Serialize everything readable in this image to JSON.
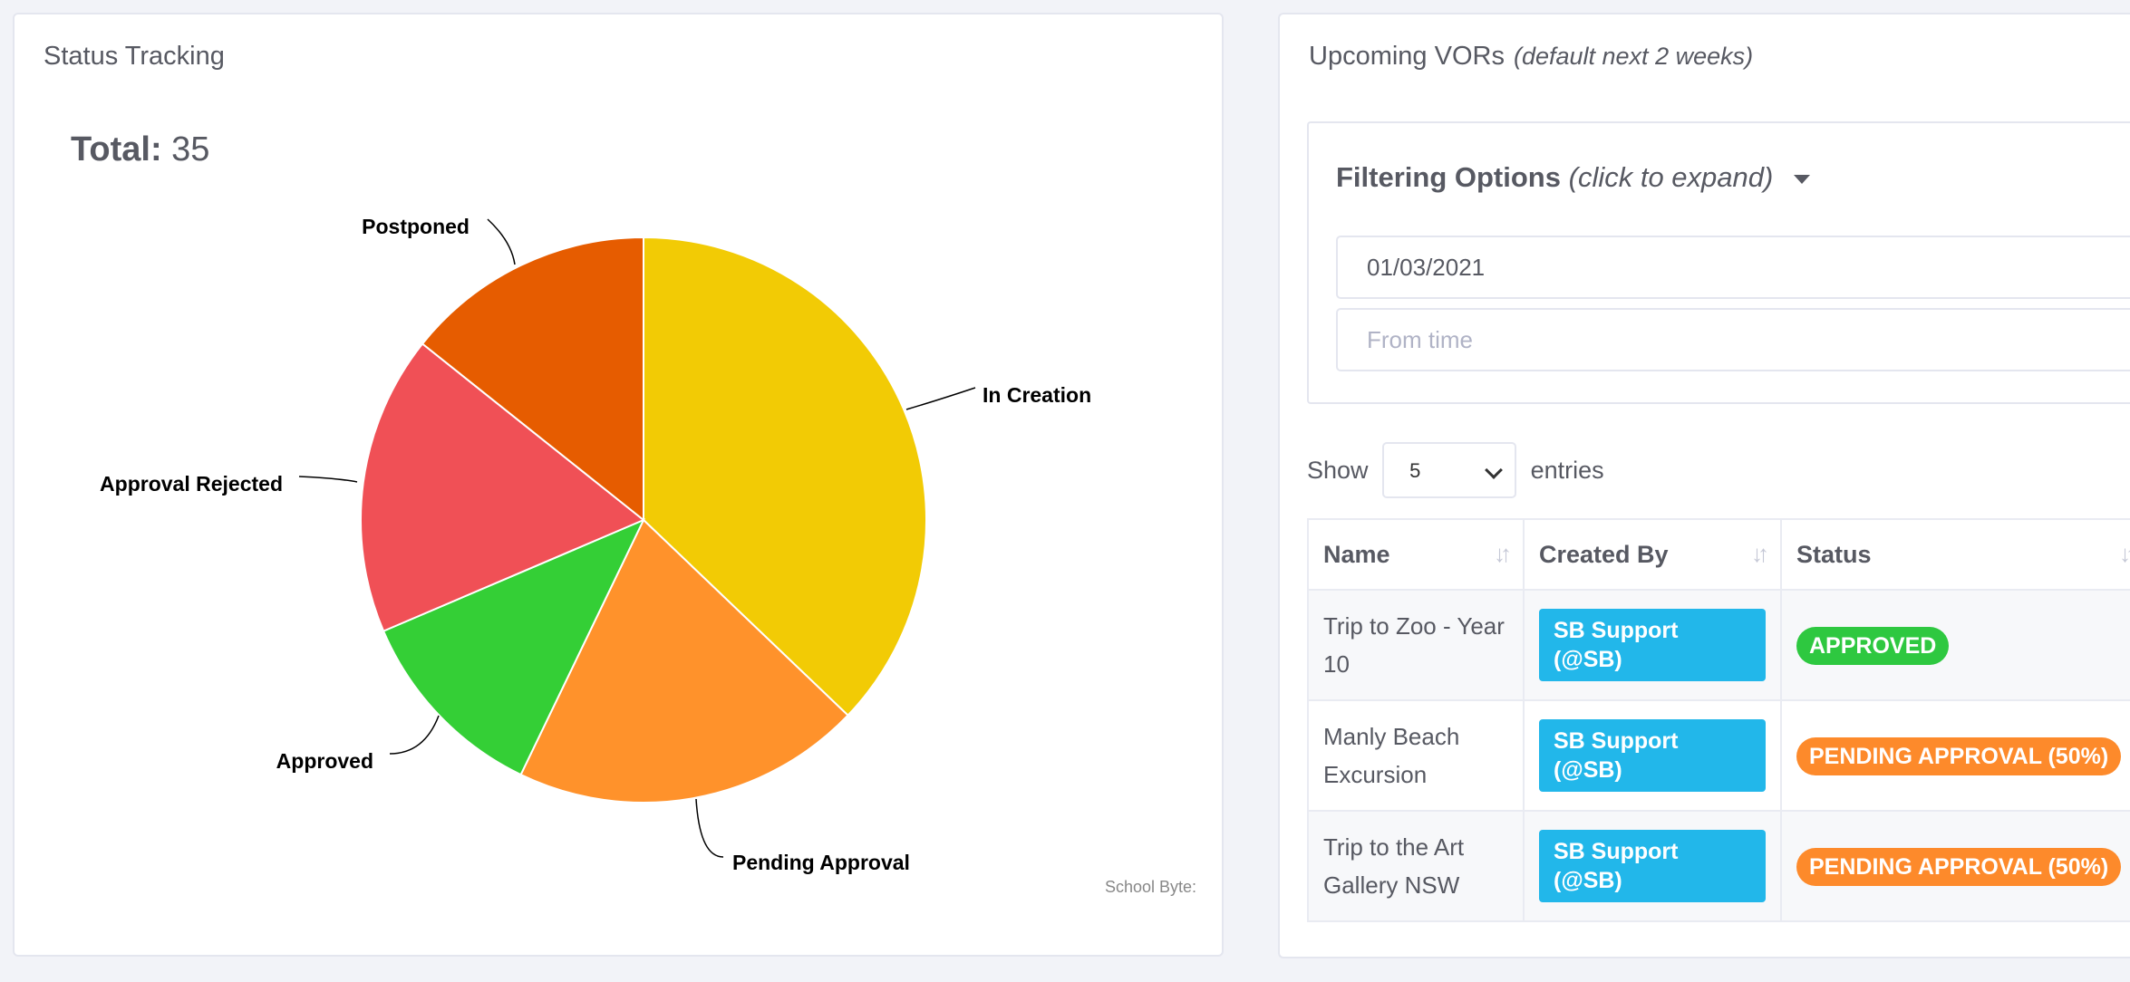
{
  "status_panel": {
    "title": "Status Tracking",
    "total_label": "Total:",
    "total_value": "35",
    "credits": "School Byte:"
  },
  "chart_data": {
    "type": "pie",
    "slices": [
      {
        "label": "In Creation",
        "value": 13,
        "color": "#f2cb05"
      },
      {
        "label": "Pending Approval",
        "value": 7,
        "color": "#ff922b"
      },
      {
        "label": "Approved",
        "value": 4,
        "color": "#34cf36"
      },
      {
        "label": "Approval Rejected",
        "value": 6,
        "color": "#f05056"
      },
      {
        "label": "Postponed",
        "value": 5,
        "color": "#e65c00"
      }
    ]
  },
  "vor_panel": {
    "title": "Upcoming VORs",
    "title_note": "(default next 2 weeks)",
    "filter": {
      "title": "Filtering Options",
      "hint": "(click to expand)",
      "date_value": "01/03/2021",
      "time_placeholder": "From time"
    },
    "show_label": "Show",
    "entries_value": "5",
    "entries_label": "entries",
    "columns": [
      "Name",
      "Created By",
      "Status"
    ],
    "rows": [
      {
        "name": "Trip to Zoo - Year 10",
        "created_by": "SB Support (@SB)",
        "status": "APPROVED",
        "status_color": "#2ec840"
      },
      {
        "name": "Manly Beach Excursion",
        "created_by": "SB Support (@SB)",
        "status": "PENDING APPROVAL (50%)",
        "status_color": "#fd8a2b"
      },
      {
        "name": "Trip to the Art Gallery NSW",
        "created_by": "SB Support (@SB)",
        "status": "PENDING APPROVAL (50%)",
        "status_color": "#fd8a2b"
      }
    ]
  }
}
